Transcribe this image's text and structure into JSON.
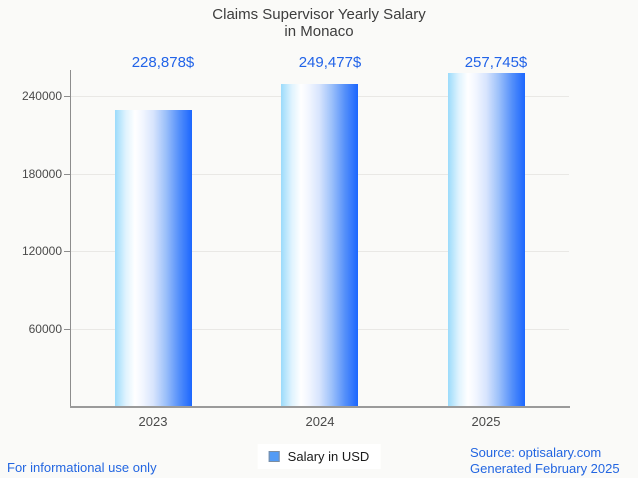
{
  "title": {
    "line1": "Claims Supervisor Yearly Salary",
    "line2": "in Monaco"
  },
  "chart_data": {
    "type": "bar",
    "title": "Claims Supervisor Yearly Salary in Monaco",
    "categories": [
      "2023",
      "2024",
      "2025"
    ],
    "series": [
      {
        "name": "Salary in USD",
        "values": [
          228878,
          249477,
          257745
        ]
      }
    ],
    "values": [
      228878,
      249477,
      257745
    ],
    "value_labels": [
      "228,878$",
      "249,477$",
      "257,745$"
    ],
    "ytick_labels": [
      "240000",
      "180000",
      "120000",
      "60000"
    ],
    "yticks": [
      240000,
      180000,
      120000,
      60000
    ],
    "ylim": [
      0,
      260000
    ],
    "xlabel": "",
    "ylabel": "",
    "grid": true,
    "legend_position": "bottom-center",
    "bar_gradient": [
      "#9bdbfb",
      "#ffffff",
      "#1b66fe"
    ]
  },
  "legend": {
    "label": "Salary in USD",
    "marker_color": "#539bf5"
  },
  "footer": {
    "left": "For informational use only",
    "source": "Source: optisalary.com",
    "generated": "Generated February 2025"
  },
  "colors": {
    "background": "#fafaf8",
    "accent_blue": "#2163e8",
    "footer_blue": "#2366e1",
    "title_text": "#3d3d3d",
    "axis_text": "#4a4a4a",
    "gridline": "#e9e8e5",
    "axis_line": "#8d8d8d"
  }
}
